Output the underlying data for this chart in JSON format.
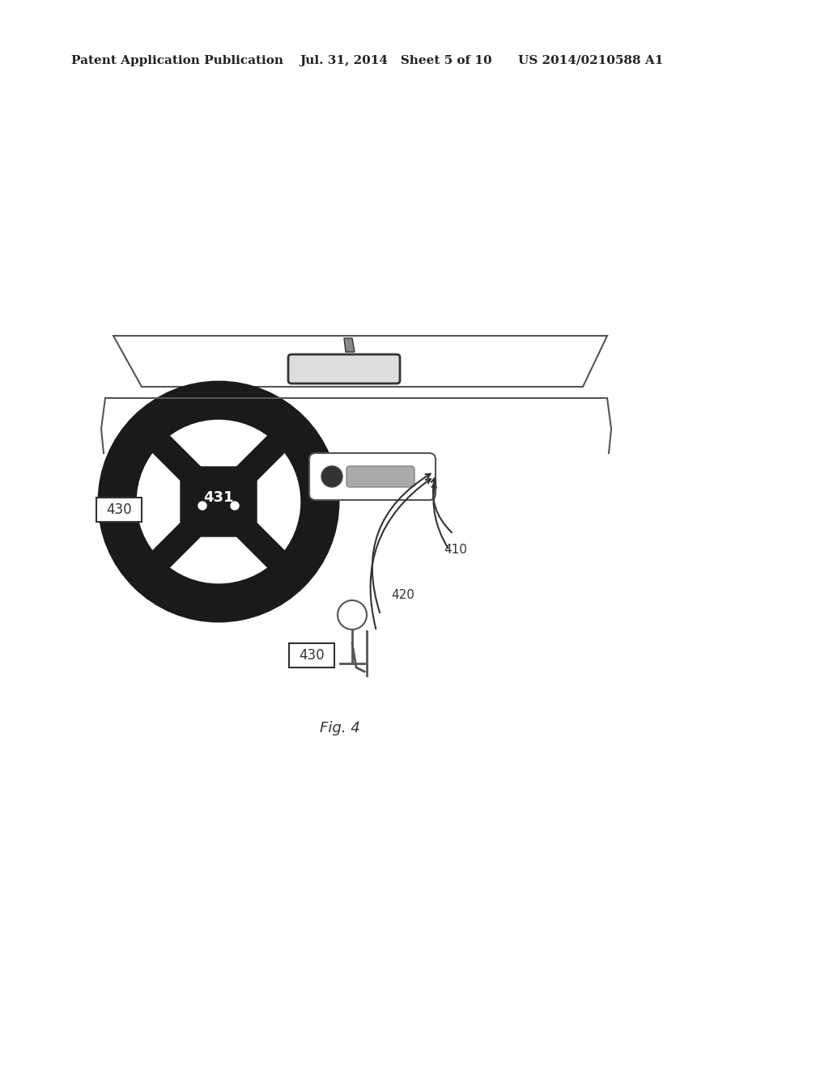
{
  "bg_color": "#ffffff",
  "header_left": "Patent Application Publication",
  "header_mid": "Jul. 31, 2014   Sheet 5 of 10",
  "header_right": "US 2014/0210588 A1",
  "fig_label": "Fig. 4",
  "label_410": "410",
  "label_420": "420",
  "label_430": "430",
  "label_431": "431"
}
